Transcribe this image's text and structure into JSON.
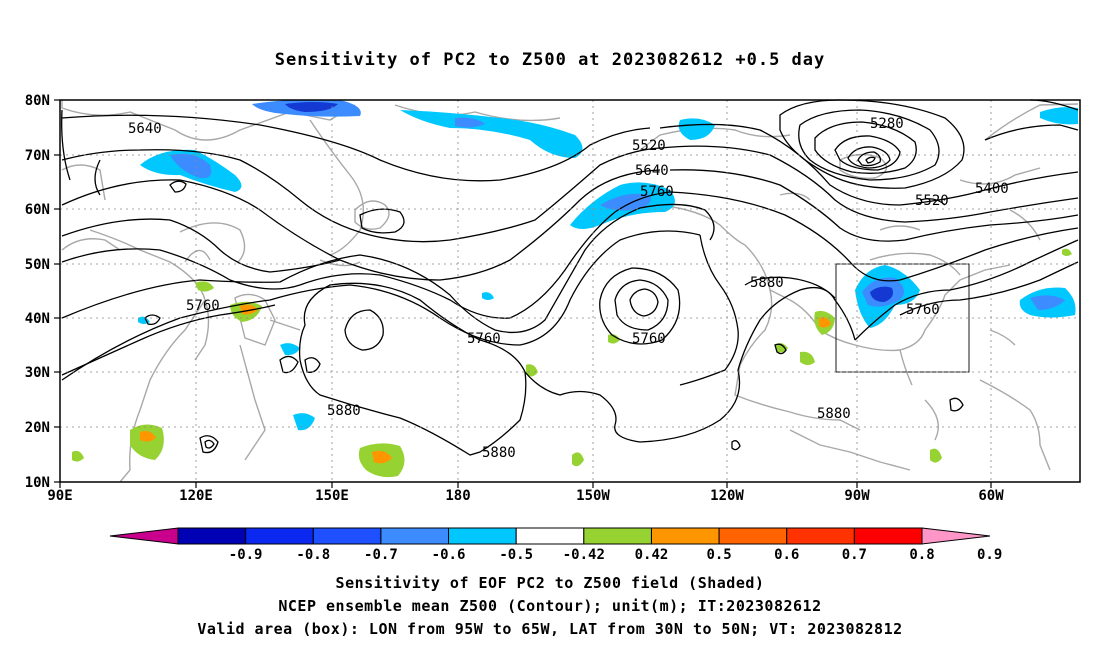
{
  "title": "Sensitivity of PC2 to Z500 at 2023082612 +0.5 day",
  "lat_labels": [
    "80N",
    "70N",
    "60N",
    "50N",
    "40N",
    "30N",
    "20N",
    "10N"
  ],
  "lon_labels": [
    "90E",
    "120E",
    "150E",
    "180",
    "150W",
    "120W",
    "90W",
    "60W"
  ],
  "contour_labels": {
    "c5640a": "5640",
    "c5520a": "5520",
    "c5640b": "5640",
    "c5760a": "5760",
    "c5280": "5280",
    "c5400": "5400",
    "c5520b": "5520",
    "c5760b": "5760",
    "c5760c": "5760",
    "c5760d": "5760",
    "c5760e": "5760",
    "c5880a": "5880",
    "c5880b": "5880",
    "c5880c": "5880",
    "c5880d": "5880"
  },
  "colorbar": {
    "labels": [
      "-0.9",
      "-0.8",
      "-0.7",
      "-0.6",
      "-0.5",
      "-0.42",
      "0.42",
      "0.5",
      "0.6",
      "0.7",
      "0.8",
      "0.9"
    ],
    "colors": [
      "#c8008c",
      "#0000b4",
      "#0a28f0",
      "#1e50ff",
      "#3c8cff",
      "#00c8ff",
      "#ffffff",
      "#96d232",
      "#ff9600",
      "#ff6400",
      "#ff3200",
      "#ff0000",
      "#ff96c8"
    ]
  },
  "shade_colors": {
    "dark_blue": "#1438d2",
    "blue": "#3c8cff",
    "light_blue": "#00c8ff",
    "green": "#96d232",
    "orange": "#ff9600",
    "red": "#ff3200"
  },
  "footer": {
    "line1": "Sensitivity of EOF PC2 to Z500 field (Shaded)",
    "line2": "NCEP ensemble mean Z500 (Contour); unit(m); IT:2023082612",
    "line3": "Valid area (box): LON from 95W to 65W, LAT from 30N to 50N; VT: 2023082812"
  }
}
